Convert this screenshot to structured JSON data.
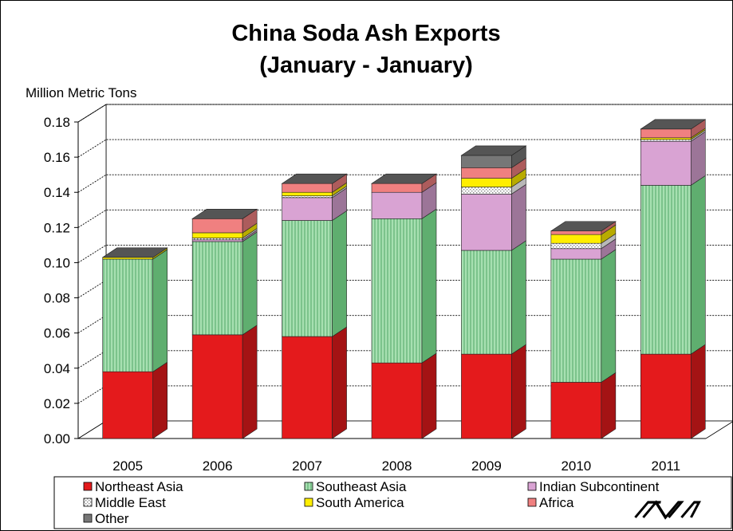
{
  "chart_data": {
    "type": "bar",
    "stacked": true,
    "three_d": true,
    "title": "China Soda Ash Exports",
    "subtitle": "(January - January)",
    "ylabel": "Million Metric Tons",
    "xlabel": "",
    "ylim": [
      0,
      0.18
    ],
    "yticks": [
      "0.00",
      "0.02",
      "0.04",
      "0.06",
      "0.08",
      "0.10",
      "0.12",
      "0.14",
      "0.16",
      "0.18"
    ],
    "categories": [
      "2005",
      "2006",
      "2007",
      "2008",
      "2009",
      "2010",
      "2011"
    ],
    "grid": true,
    "legend_position": "bottom",
    "series": [
      {
        "name": "Northeast Asia",
        "color": "#e41a1c",
        "pattern": "solid",
        "values": [
          0.038,
          0.059,
          0.058,
          0.043,
          0.048,
          0.032,
          0.048
        ]
      },
      {
        "name": "Southeast Asia",
        "color": "#93d59e",
        "pattern": "vertical-lines",
        "values": [
          0.064,
          0.053,
          0.066,
          0.082,
          0.059,
          0.07,
          0.096
        ]
      },
      {
        "name": "Indian Subcontinent",
        "color": "#d9a3d3",
        "pattern": "solid",
        "values": [
          0.0,
          0.001,
          0.013,
          0.015,
          0.032,
          0.006,
          0.025
        ]
      },
      {
        "name": "Middle East",
        "color": "#ffffff",
        "pattern": "dotted",
        "values": [
          0.0,
          0.001,
          0.001,
          0.0,
          0.004,
          0.003,
          0.001
        ]
      },
      {
        "name": "South America",
        "color": "#ffee00",
        "pattern": "solid",
        "values": [
          0.001,
          0.003,
          0.002,
          0.0,
          0.005,
          0.005,
          0.001
        ]
      },
      {
        "name": "Africa",
        "color": "#f08080",
        "pattern": "solid",
        "values": [
          0.0,
          0.008,
          0.005,
          0.005,
          0.006,
          0.002,
          0.005
        ]
      },
      {
        "name": "Other",
        "color": "#777777",
        "pattern": "solid",
        "values": [
          0.0,
          0.0,
          0.0,
          0.0,
          0.007,
          0.0,
          0.0
        ]
      }
    ]
  },
  "logo": {
    "text": "CMAI"
  },
  "colors": {
    "top_cap": "#555555",
    "frame": "#000000"
  }
}
